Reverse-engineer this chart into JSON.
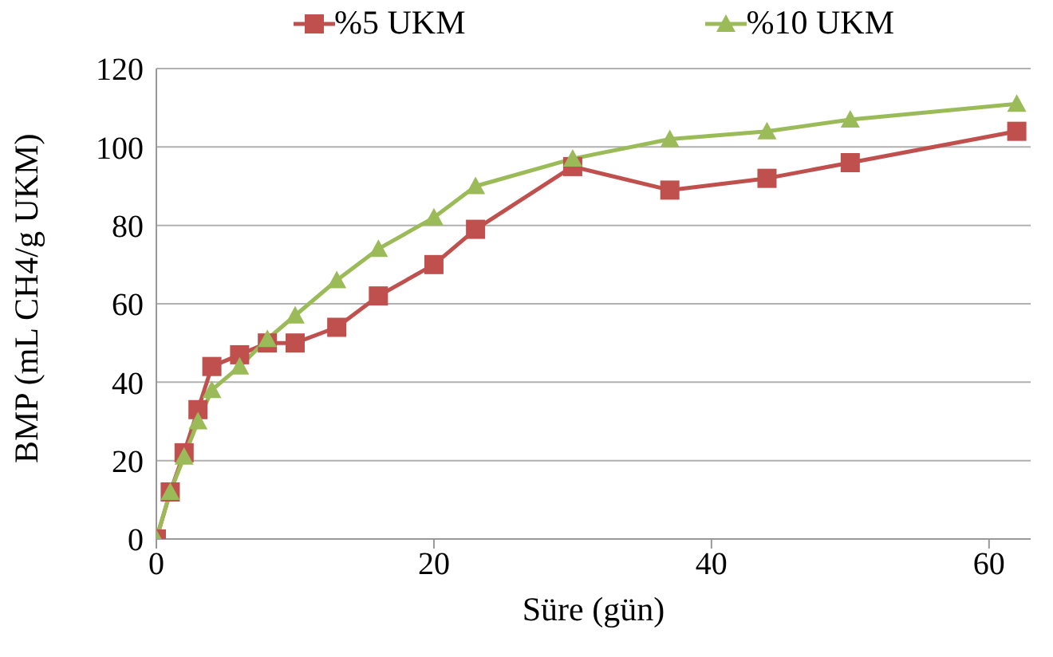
{
  "chart_data": {
    "type": "line",
    "xlabel": "Süre (gün)",
    "ylabel": "BMP (mL CH4/g UKM)",
    "x": [
      0,
      1,
      2,
      3,
      4,
      6,
      8,
      10,
      13,
      16,
      20,
      23,
      30,
      37,
      44,
      50,
      62
    ],
    "series": [
      {
        "name": "%5 UKM",
        "color": "#c0504d",
        "marker": "square",
        "values": [
          0,
          12,
          22,
          33,
          44,
          47,
          50,
          50,
          54,
          62,
          70,
          79,
          95,
          89,
          92,
          96,
          104
        ]
      },
      {
        "name": "%10 UKM",
        "color": "#9bbb59",
        "marker": "triangle",
        "values": [
          0,
          12,
          21,
          30,
          38,
          44,
          51,
          57,
          66,
          74,
          82,
          90,
          97,
          102,
          104,
          107,
          111
        ]
      }
    ],
    "xlim": [
      0,
      63
    ],
    "xticks": [
      0,
      20,
      40,
      60
    ],
    "ylim": [
      0,
      120
    ],
    "yticks": [
      0,
      20,
      40,
      60,
      80,
      100,
      120
    ],
    "grid": "y",
    "legend": "top"
  }
}
